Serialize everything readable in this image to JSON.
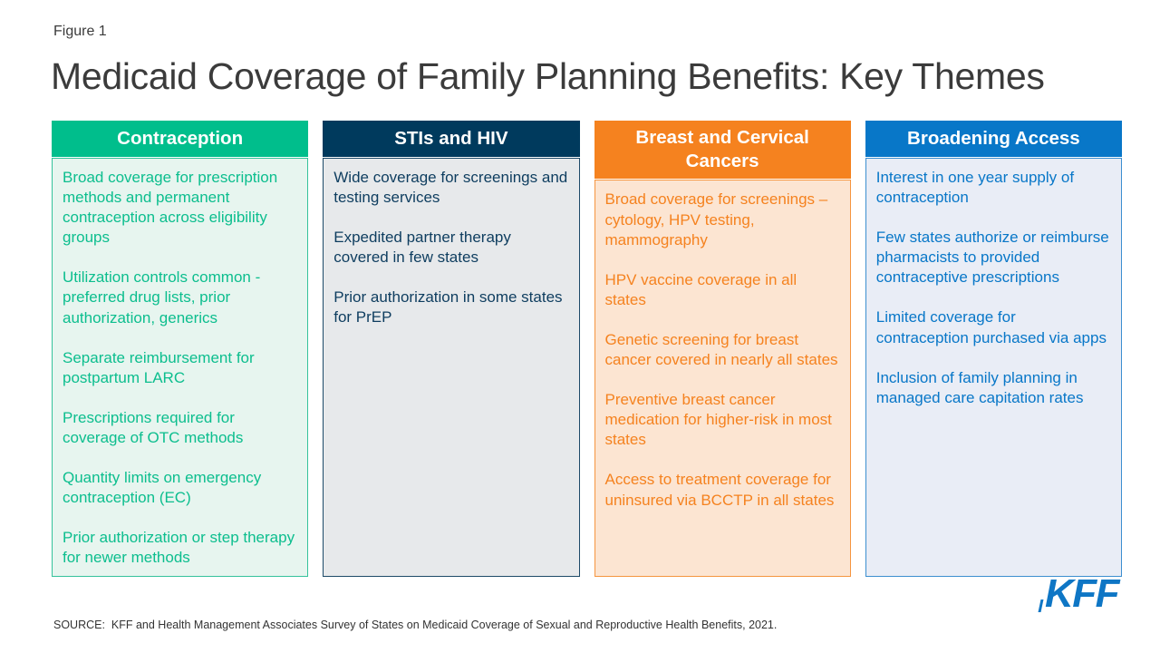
{
  "figure_label": "Figure 1",
  "title": "Medicaid Coverage of Family Planning Benefits: Key Themes",
  "source": "SOURCE:  KFF and Health Management Associates Survey of States on Medicaid Coverage of Sexual and Reproductive Health Benefits, 2021.",
  "logo": {
    "text": "KFF",
    "color": "#0e76c5"
  },
  "title_color": "#3b3b3b",
  "columns": [
    {
      "header": "Contraception",
      "colors": {
        "header_bg": "#00be8c",
        "body_bg": "#e7f5ef",
        "border": "#35c29b",
        "text": "#0cbe8e"
      },
      "items": [
        "Broad coverage for prescription methods and permanent contraception across eligibility groups",
        "Utilization controls common - preferred drug lists, prior authorization, generics",
        "Separate reimbursement for postpartum LARC",
        "Prescriptions required for coverage of OTC methods",
        "Quantity limits on emergency contraception (EC)",
        "Prior authorization or step therapy for newer methods"
      ]
    },
    {
      "header": "STIs and HIV",
      "colors": {
        "header_bg": "#003a5d",
        "body_bg": "#e7e9eb",
        "border": "#1d4a68",
        "text": "#0e3d5f"
      },
      "items": [
        "Wide coverage for screenings and testing services",
        "Expedited partner therapy covered in few states",
        "Prior authorization in some states for PrEP"
      ]
    },
    {
      "header": "Breast and Cervical Cancers",
      "colors": {
        "header_bg": "#f5821f",
        "body_bg": "#fce5d2",
        "border": "#f5953f",
        "text": "#f5821f"
      },
      "items": [
        "Broad coverage for screenings – cytology, HPV testing, mammography",
        "HPV vaccine coverage in all states",
        "Genetic screening for breast cancer covered in nearly all states",
        "Preventive breast cancer medication for higher-risk in most states",
        "Access to treatment coverage for uninsured via BCCTP in all states"
      ]
    },
    {
      "header": "Broadening Access",
      "colors": {
        "header_bg": "#0877c8",
        "body_bg": "#e9edf6",
        "border": "#3c8fd0",
        "text": "#0877c8"
      },
      "items": [
        "Interest in one year supply of contraception",
        "Few states authorize or reimburse pharmacists to provided contraceptive prescriptions",
        "Limited coverage for contraception purchased via apps",
        "Inclusion of family planning in managed care capitation rates"
      ]
    }
  ]
}
